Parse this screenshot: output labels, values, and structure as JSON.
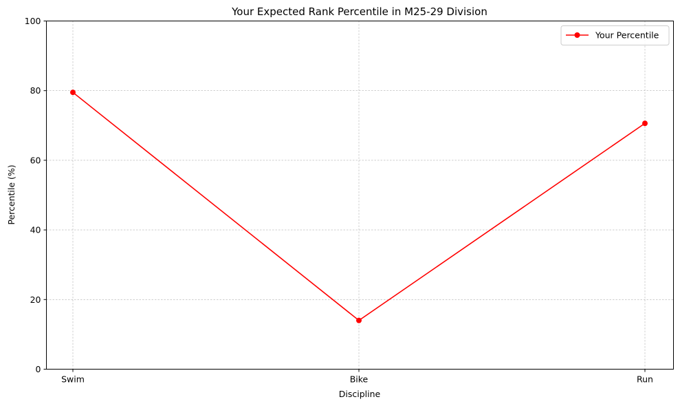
{
  "chart_data": {
    "type": "line",
    "title": "Your Expected Rank Percentile in M25-29 Division",
    "xlabel": "Discipline",
    "ylabel": "Percentile (%)",
    "categories": [
      "Swim",
      "Bike",
      "Run"
    ],
    "ylim": [
      0,
      100
    ],
    "yticks": [
      0,
      20,
      40,
      60,
      80,
      100
    ],
    "grid": true,
    "legend_position": "top-right",
    "series": [
      {
        "name": "Your Percentile",
        "values": [
          79.5,
          14.0,
          70.6
        ],
        "color": "#ff0000",
        "marker": "circle"
      }
    ]
  }
}
